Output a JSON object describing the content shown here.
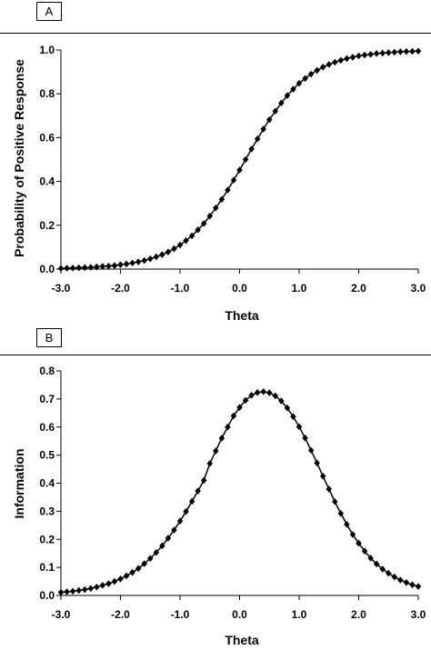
{
  "chart_data": [
    {
      "type": "line",
      "panel_label": "A",
      "xlabel": "Theta",
      "ylabel": "Probability of Positive Response",
      "xlim": [
        -3.0,
        3.0
      ],
      "ylim": [
        0.0,
        1.0
      ],
      "xticks": [
        "-3.0",
        "-2.0",
        "-1.0",
        "0.0",
        "1.0",
        "2.0",
        "3.0"
      ],
      "yticks": [
        "0.0",
        "0.2",
        "0.4",
        "0.6",
        "0.8",
        "1.0"
      ],
      "grid": false,
      "legend": "none",
      "marker": "diamond",
      "color": "#000000",
      "series": [
        {
          "x": [
            -3.0,
            -2.9,
            -2.8,
            -2.7,
            -2.6,
            -2.5,
            -2.4,
            -2.3,
            -2.2,
            -2.1,
            -2.0,
            -1.9,
            -1.8,
            -1.7,
            -1.6,
            -1.5,
            -1.4,
            -1.3,
            -1.2,
            -1.1,
            -1.0,
            -0.9,
            -0.8,
            -0.7,
            -0.6,
            -0.5,
            -0.4,
            -0.3,
            -0.2,
            -0.1,
            0.0,
            0.1,
            0.2,
            0.3,
            0.4,
            0.5,
            0.6,
            0.7,
            0.8,
            0.9,
            1.0,
            1.1,
            1.2,
            1.3,
            1.4,
            1.5,
            1.6,
            1.7,
            1.8,
            1.9,
            2.0,
            2.1,
            2.2,
            2.3,
            2.4,
            2.5,
            2.6,
            2.7,
            2.8,
            2.9,
            3.0
          ],
          "y": [
            0.003,
            0.004,
            0.005,
            0.006,
            0.007,
            0.008,
            0.01,
            0.012,
            0.014,
            0.016,
            0.02,
            0.023,
            0.028,
            0.033,
            0.039,
            0.047,
            0.056,
            0.066,
            0.078,
            0.093,
            0.11,
            0.13,
            0.152,
            0.179,
            0.208,
            0.242,
            0.279,
            0.318,
            0.361,
            0.406,
            0.452,
            0.5,
            0.548,
            0.594,
            0.639,
            0.682,
            0.721,
            0.758,
            0.792,
            0.821,
            0.848,
            0.87,
            0.89,
            0.907,
            0.922,
            0.934,
            0.944,
            0.953,
            0.961,
            0.967,
            0.973,
            0.977,
            0.98,
            0.984,
            0.986,
            0.988,
            0.99,
            0.992,
            0.993,
            0.994,
            0.995
          ]
        }
      ]
    },
    {
      "type": "line",
      "panel_label": "B",
      "xlabel": "Theta",
      "ylabel": "Information",
      "xlim": [
        -3.0,
        3.0
      ],
      "ylim": [
        0.0,
        0.8
      ],
      "xticks": [
        "-3.0",
        "-2.0",
        "-1.0",
        "0.0",
        "1.0",
        "2.0",
        "3.0"
      ],
      "yticks": [
        "0.0",
        "0.1",
        "0.2",
        "0.3",
        "0.4",
        "0.5",
        "0.6",
        "0.7",
        "0.8"
      ],
      "grid": false,
      "legend": "none",
      "marker": "diamond",
      "color": "#000000",
      "series": [
        {
          "x": [
            -3.0,
            -2.9,
            -2.8,
            -2.7,
            -2.6,
            -2.5,
            -2.4,
            -2.3,
            -2.2,
            -2.1,
            -2.0,
            -1.9,
            -1.8,
            -1.7,
            -1.6,
            -1.5,
            -1.4,
            -1.3,
            -1.2,
            -1.1,
            -1.0,
            -0.9,
            -0.8,
            -0.7,
            -0.6,
            -0.5,
            -0.4,
            -0.3,
            -0.2,
            -0.1,
            0.0,
            0.1,
            0.2,
            0.3,
            0.4,
            0.5,
            0.6,
            0.7,
            0.8,
            0.9,
            1.0,
            1.1,
            1.2,
            1.3,
            1.4,
            1.5,
            1.6,
            1.7,
            1.8,
            1.9,
            2.0,
            2.1,
            2.2,
            2.3,
            2.4,
            2.5,
            2.6,
            2.7,
            2.8,
            2.9,
            3.0
          ],
          "y": [
            0.011,
            0.013,
            0.015,
            0.018,
            0.021,
            0.025,
            0.03,
            0.036,
            0.042,
            0.05,
            0.059,
            0.07,
            0.082,
            0.096,
            0.113,
            0.132,
            0.153,
            0.177,
            0.204,
            0.233,
            0.265,
            0.299,
            0.335,
            0.372,
            0.41,
            0.47,
            0.515,
            0.56,
            0.6,
            0.64,
            0.67,
            0.695,
            0.713,
            0.723,
            0.726,
            0.722,
            0.711,
            0.693,
            0.668,
            0.637,
            0.601,
            0.561,
            0.517,
            0.472,
            0.425,
            0.379,
            0.334,
            0.292,
            0.253,
            0.217,
            0.186,
            0.158,
            0.133,
            0.112,
            0.094,
            0.079,
            0.066,
            0.055,
            0.046,
            0.038,
            0.032
          ]
        }
      ]
    }
  ]
}
